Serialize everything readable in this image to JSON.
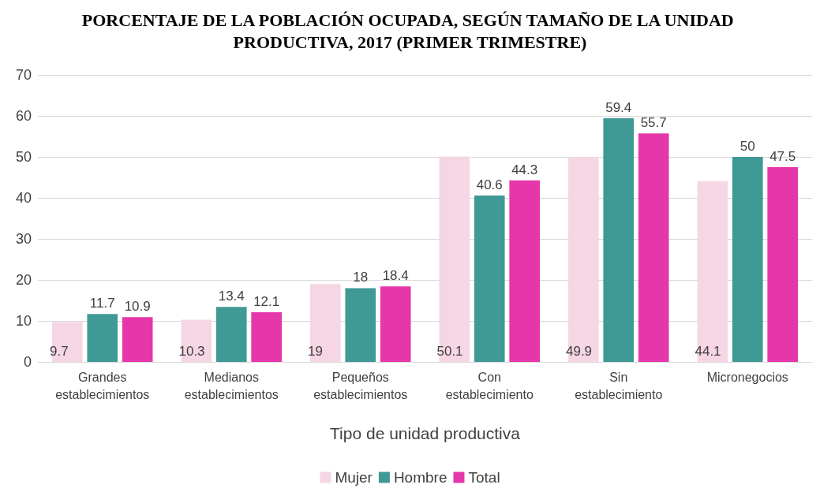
{
  "chart_data": {
    "type": "bar",
    "title": "PORCENTAJE DE LA POBLACIÓN OCUPADA, SEGÚN TAMAÑO DE LA UNIDAD PRODUCTIVA, 2017 (PRIMER TRIMESTRE)",
    "xlabel": "Tipo de unidad productiva",
    "categories": [
      "Grandes\nestablecimientos",
      "Medianos\nestablecimientos",
      "Pequeños\nestablecimientos",
      "Con\nestablecimiento",
      "Sin\nestablecimiento",
      "Micronegocios"
    ],
    "series": [
      {
        "name": "Mujer",
        "color": "#f6d6e4",
        "values": [
          9.7,
          10.3,
          19,
          50.1,
          49.9,
          44.1
        ]
      },
      {
        "name": "Hombre",
        "color": "#3f9995",
        "values": [
          11.7,
          13.4,
          18,
          40.6,
          59.4,
          50
        ]
      },
      {
        "name": "Total",
        "color": "#e537a9",
        "values": [
          10.9,
          12.1,
          18.4,
          44.3,
          55.7,
          47.5
        ]
      }
    ],
    "ylim": [
      0,
      70
    ],
    "yticks": [
      0,
      10,
      20,
      30,
      40,
      50,
      60,
      70
    ],
    "grid": "y",
    "legend": "bottom",
    "data_labels": true
  }
}
